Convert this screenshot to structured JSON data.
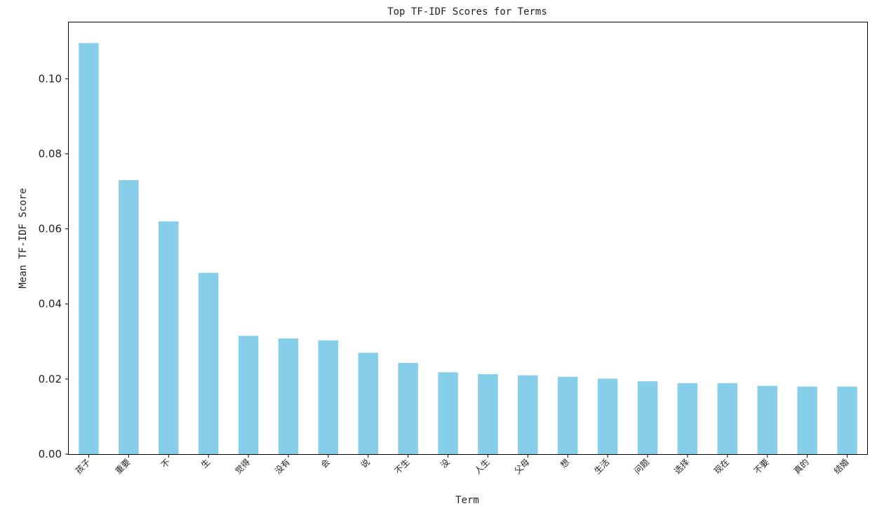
{
  "chart_data": {
    "type": "bar",
    "title": "Top TF-IDF Scores for Terms",
    "xlabel": "Term",
    "ylabel": "Mean TF-IDF Score",
    "categories": [
      "孩子",
      "重要",
      "不",
      "生",
      "觉得",
      "没有",
      "会",
      "说",
      "不生",
      "没",
      "人生",
      "父母",
      "想",
      "生活",
      "问题",
      "选择",
      "现在",
      "不要",
      "真的",
      "结婚"
    ],
    "values": [
      0.1095,
      0.073,
      0.062,
      0.0483,
      0.0315,
      0.0308,
      0.0303,
      0.027,
      0.0243,
      0.0218,
      0.0213,
      0.021,
      0.0206,
      0.0201,
      0.0194,
      0.0189,
      0.0189,
      0.0182,
      0.018,
      0.018
    ],
    "ylim": [
      0,
      0.115
    ],
    "yticks": [
      "0.00",
      "0.02",
      "0.04",
      "0.06",
      "0.08",
      "0.10"
    ],
    "ytick_values": [
      0,
      0.02,
      0.04,
      0.06,
      0.08,
      0.1
    ],
    "bar_color": "#87CEEB",
    "grid": false,
    "legend": "none"
  }
}
